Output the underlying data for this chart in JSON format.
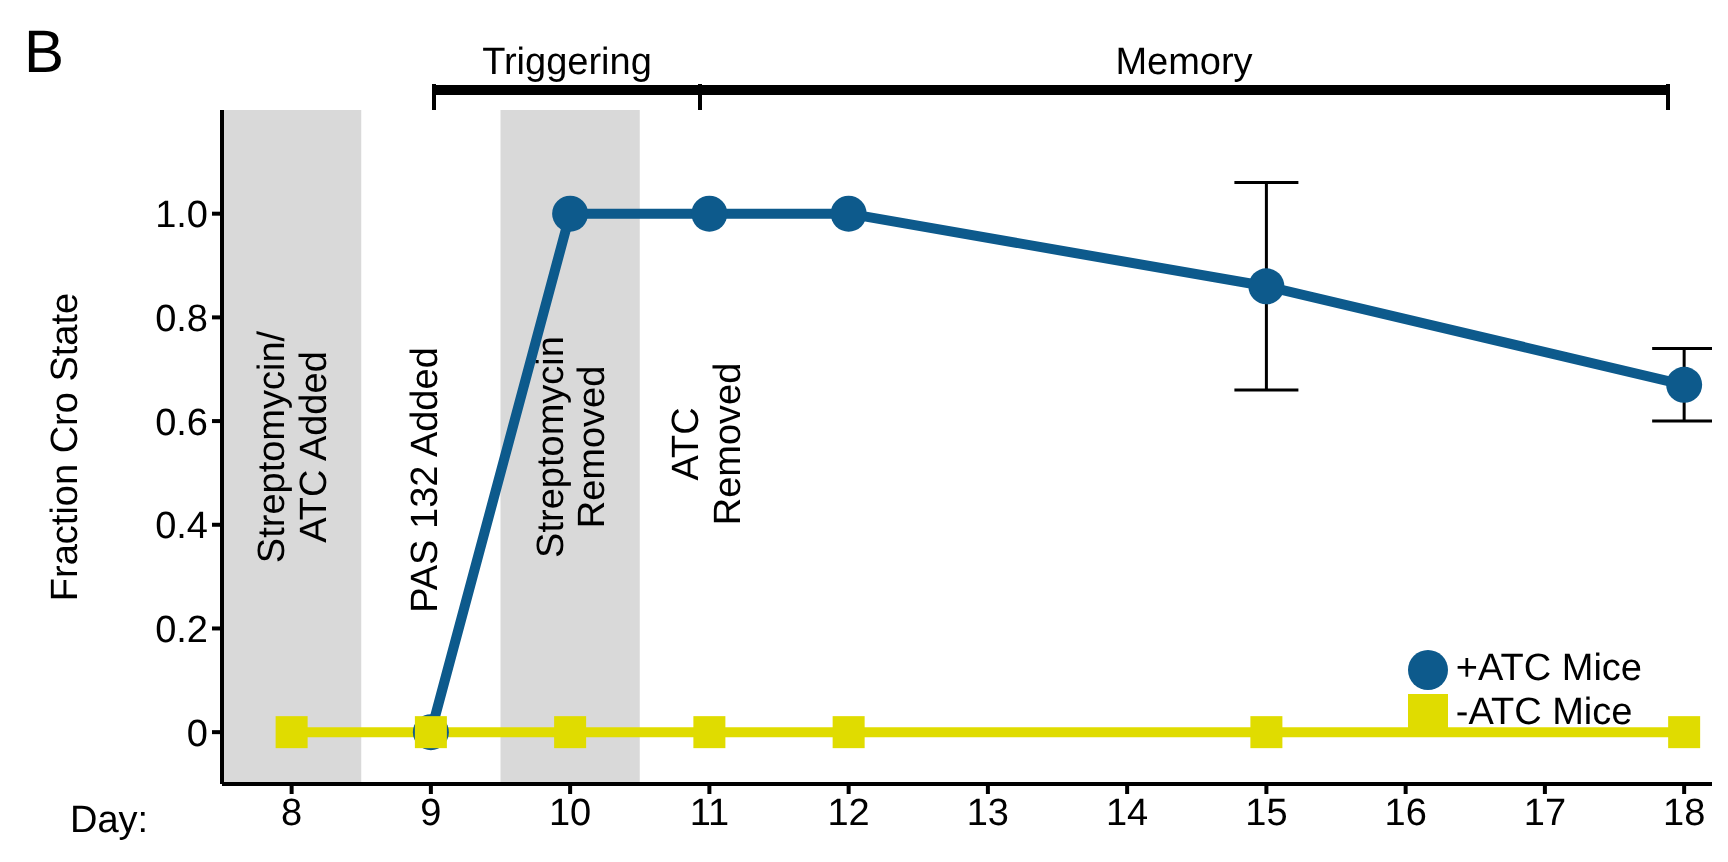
{
  "chart_data": {
    "type": "line",
    "title": "B",
    "xlabel": "Day:",
    "ylabel": "Fraction Cro State",
    "xlim": [
      7.5,
      18.2
    ],
    "xticks": [
      8,
      9,
      10,
      11,
      12,
      13,
      14,
      15,
      16,
      17,
      18
    ],
    "ylim": [
      -0.1,
      1.2
    ],
    "yticks": [
      0,
      0.2,
      0.4,
      0.6,
      0.8,
      {
        "value": 1,
        "label": "1.0"
      }
    ],
    "series": [
      {
        "name": "+ATC Mice",
        "color": "#0d5a8c",
        "marker": "circle",
        "x": [
          9,
          10,
          11,
          12,
          15,
          18
        ],
        "values": [
          0,
          1,
          1,
          1,
          0.86,
          0.67
        ],
        "errors": [
          null,
          null,
          null,
          null,
          0.2,
          0.07
        ]
      },
      {
        "name": "-ATC Mice",
        "color": "#e0dc00",
        "marker": "square",
        "x": [
          8,
          9,
          10,
          11,
          12,
          15,
          18
        ],
        "values": [
          0,
          0,
          0,
          0,
          0,
          0,
          0
        ]
      }
    ],
    "bands": [
      {
        "axis": "x",
        "from": 7.5,
        "to": 8.5,
        "label": "Streptomycin/\nATC Added",
        "color": "#d9d9d9"
      },
      {
        "axis": "x",
        "from": 9.5,
        "to": 10.5,
        "label": "Streptomycin\nRemoved",
        "color": "#d9d9d9"
      }
    ],
    "annotations": [
      "Triggering",
      "Memory",
      "PAS 132  Added",
      "ATC\nRemoved"
    ],
    "legend": "bottom right",
    "grid": false
  }
}
